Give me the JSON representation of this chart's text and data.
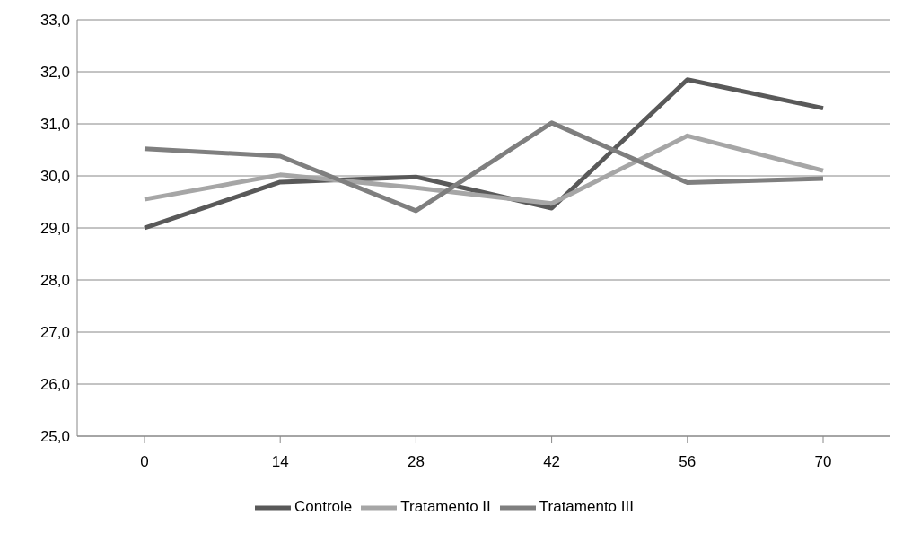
{
  "chart_data": {
    "type": "line",
    "categories": [
      "0",
      "14",
      "28",
      "42",
      "56",
      "70"
    ],
    "series": [
      {
        "name": "Controle",
        "color": "#595959",
        "values": [
          29.0,
          29.88,
          29.98,
          29.38,
          31.85,
          31.3
        ]
      },
      {
        "name": "Tratamento II",
        "color": "#a6a6a6",
        "values": [
          29.55,
          30.02,
          29.77,
          29.47,
          30.77,
          30.1
        ]
      },
      {
        "name": "Tratamento III",
        "color": "#7f7f7f",
        "values": [
          30.52,
          30.38,
          29.33,
          31.02,
          29.87,
          29.95
        ]
      }
    ],
    "ylim": [
      25,
      33
    ],
    "yticks": [
      {
        "value": 25,
        "label": "25,0"
      },
      {
        "value": 26,
        "label": "26,0"
      },
      {
        "value": 27,
        "label": "27,0"
      },
      {
        "value": 28,
        "label": "28,0"
      },
      {
        "value": 29,
        "label": "29,0"
      },
      {
        "value": 30,
        "label": "30,0"
      },
      {
        "value": 31,
        "label": "31,0"
      },
      {
        "value": 32,
        "label": "32,0"
      },
      {
        "value": 33,
        "label": "33,0"
      }
    ],
    "grid": "y",
    "legend": "bottom",
    "marker": "none",
    "line_style": "solid"
  }
}
